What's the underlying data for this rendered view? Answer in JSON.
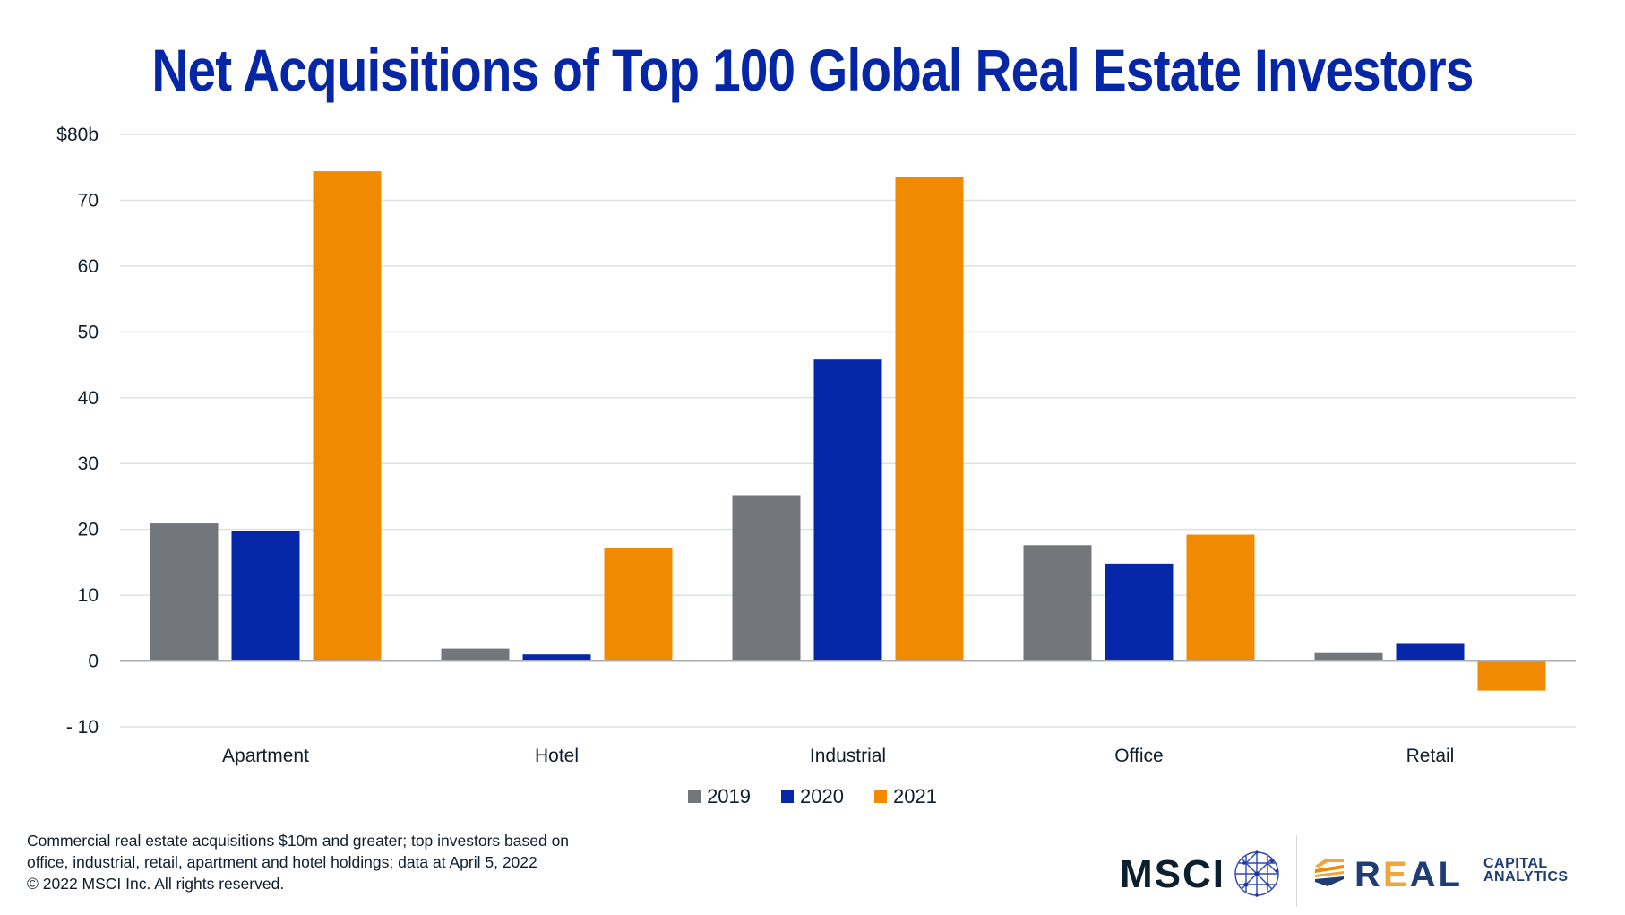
{
  "chart_data": {
    "type": "bar",
    "title": "Net Acquisitions of Top 100 Global Real Estate Investors",
    "xlabel": "",
    "ylabel": "",
    "categories": [
      "Apartment",
      "Hotel",
      "Industrial",
      "Office",
      "Retail"
    ],
    "series": [
      {
        "name": "2019",
        "color": "#73777b",
        "values": [
          20.9,
          1.9,
          25.2,
          17.6,
          1.2
        ]
      },
      {
        "name": "2020",
        "color": "#0527a8",
        "values": [
          19.7,
          1.0,
          45.8,
          14.8,
          2.6
        ]
      },
      {
        "name": "2021",
        "color": "#f08a00",
        "values": [
          74.4,
          17.1,
          73.5,
          19.2,
          -4.5
        ]
      }
    ],
    "ylim": [
      -10,
      80
    ],
    "yticks": [
      -10,
      0,
      10,
      20,
      30,
      40,
      50,
      60,
      70,
      80
    ],
    "ytick_labels": [
      "- 10",
      "0",
      "10",
      "20",
      "30",
      "40",
      "50",
      "60",
      "70",
      "$80b"
    ],
    "grid": true,
    "legend_position": "bottom-center"
  },
  "legend": [
    {
      "label": "2019",
      "color": "#73777b"
    },
    {
      "label": "2020",
      "color": "#0527a8"
    },
    {
      "label": "2021",
      "color": "#f08a00"
    }
  ],
  "footnote": {
    "lines": [
      "Commercial real estate acquisitions $10m and greater; top investors based on",
      "office, industrial, retail, apartment and hotel holdings; data at April 5, 2022",
      "© 2022 MSCI Inc. All rights reserved."
    ]
  },
  "logos": {
    "msci": "MSCI",
    "rca_real_r": "R",
    "rca_real_e": "E",
    "rca_real_al": "AL",
    "rca_capital": "CAPITAL",
    "rca_analytics": "ANALYTICS"
  }
}
